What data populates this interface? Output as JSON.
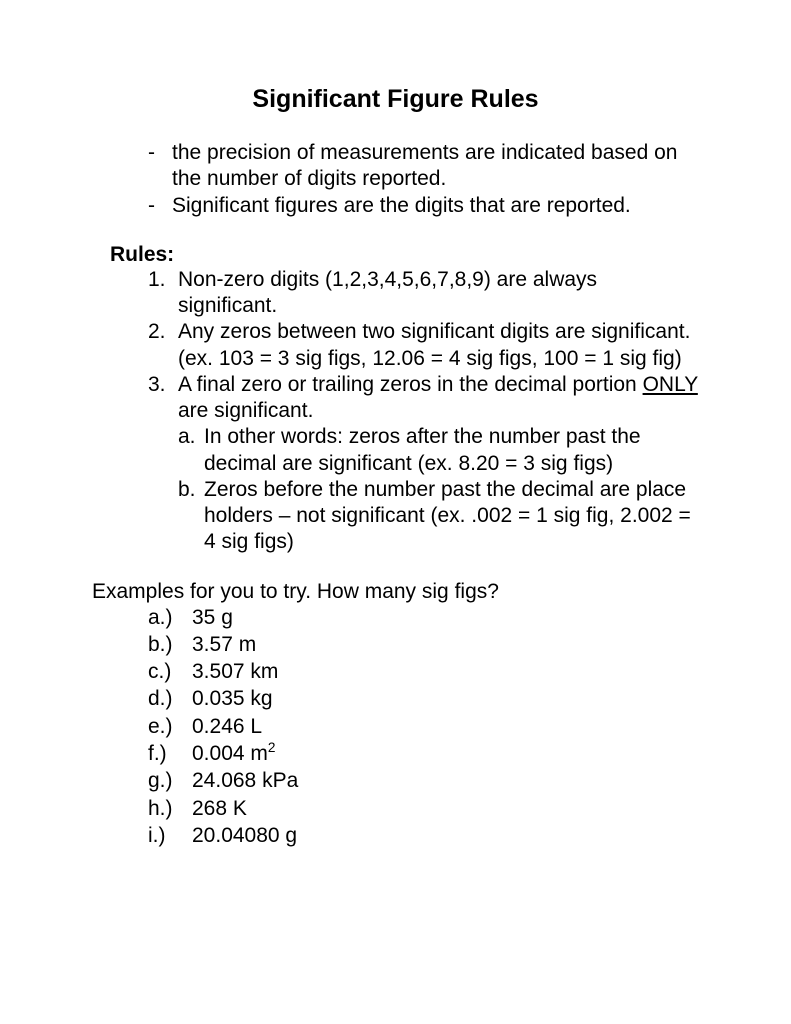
{
  "title": "Significant Figure Rules",
  "intro": [
    "the precision of measurements are indicated based on the number of digits reported.",
    "Significant figures are the digits that are reported."
  ],
  "rules_heading": "Rules:",
  "rules": [
    {
      "num": "1.",
      "text": "Non-zero digits (1,2,3,4,5,6,7,8,9) are always significant."
    },
    {
      "num": "2.",
      "text": "Any zeros between two significant digits are significant. (ex. 103 = 3 sig figs, 12.06 = 4 sig figs, 100 = 1 sig fig)"
    },
    {
      "num": "3.",
      "text_pre": "A final zero or trailing zeros in the decimal portion ",
      "text_underline": "ONLY",
      "text_post": " are significant."
    }
  ],
  "sub_rules": [
    {
      "num": "a.",
      "text": "In other words: zeros after the number past the decimal are significant (ex. 8.20 = 3 sig figs)"
    },
    {
      "num": "b.",
      "text": "Zeros before the number past the decimal are place holders – not significant (ex. .002 = 1 sig fig, 2.002 = 4 sig figs)"
    }
  ],
  "examples_heading": "Examples for you to try.  How many sig figs?",
  "examples": [
    {
      "label": "a.)",
      "text": "35 g"
    },
    {
      "label": "b.)",
      "text": "3.57 m"
    },
    {
      "label": "c.)",
      "text": "3.507 km"
    },
    {
      "label": "d.)",
      "text": "0.035 kg"
    },
    {
      "label": "e.)",
      "text": "0.246 L"
    },
    {
      "label": "f.)",
      "text_pre": "0.004 m",
      "sup": "2"
    },
    {
      "label": "g.)",
      "text": "24.068 kPa"
    },
    {
      "label": "h.)",
      "text": "268 K"
    },
    {
      "label": "i.)",
      "text": "20.04080 g"
    }
  ]
}
